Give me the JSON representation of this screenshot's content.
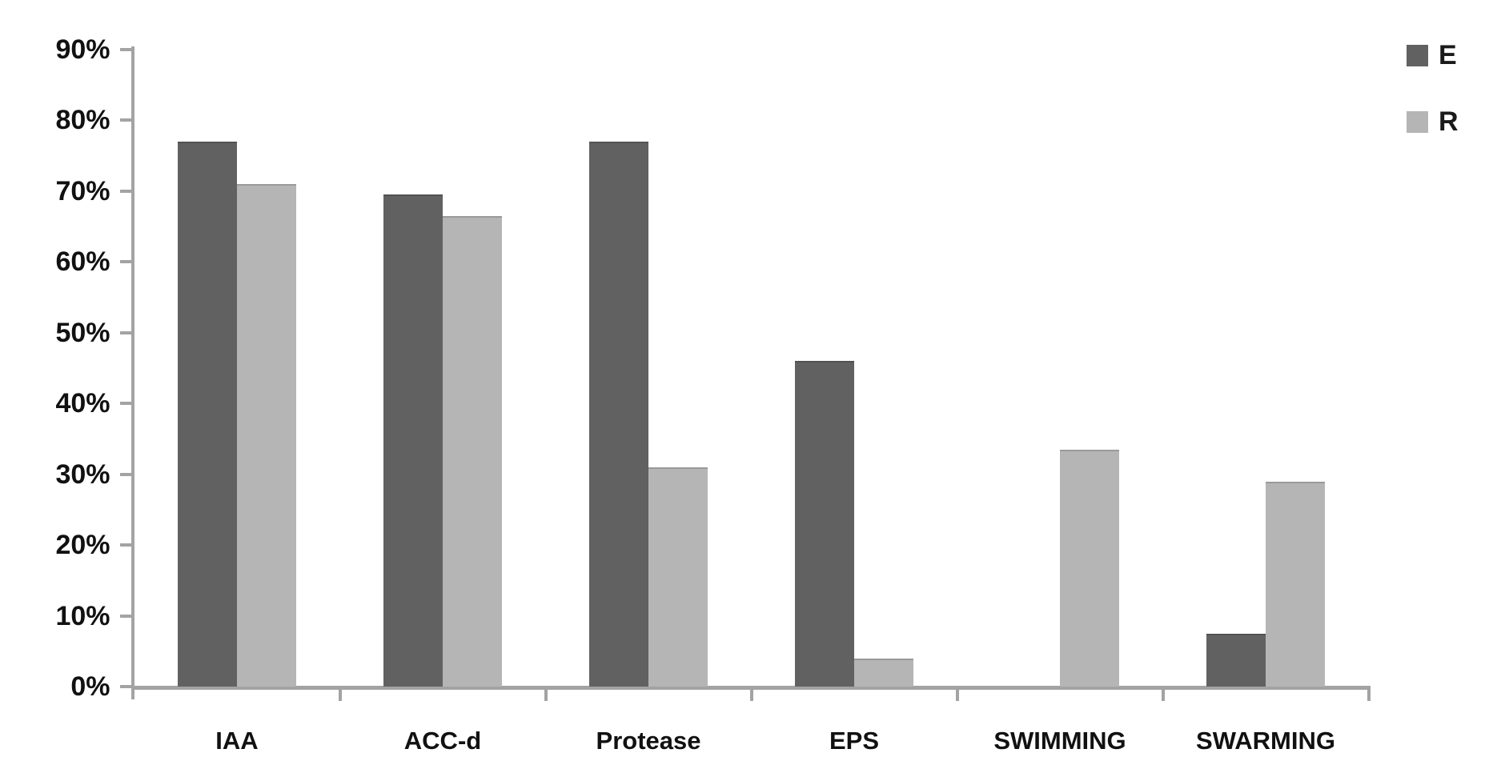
{
  "chart_data": {
    "type": "bar",
    "title": "",
    "xlabel": "",
    "ylabel": "",
    "categories": [
      "IAA",
      "ACC-d",
      "Protease",
      "EPS",
      "SWIMMING",
      "SWARMING"
    ],
    "series": [
      {
        "name": "E",
        "color": "#616161",
        "values": [
          77,
          69.5,
          77,
          46,
          0,
          7.5
        ]
      },
      {
        "name": "R",
        "color": "#b5b5b5",
        "values": [
          71,
          66.5,
          31,
          4,
          33.5,
          29
        ]
      }
    ],
    "y_ticks": [
      "0%",
      "10%",
      "20%",
      "30%",
      "40%",
      "50%",
      "60%",
      "70%",
      "80%",
      "90%"
    ],
    "ylim": [
      0,
      90
    ],
    "y_tick_step": 10,
    "grid": false,
    "legend_position": "top-right",
    "axis_color": "#a3a3a3",
    "text_color": "#111111"
  }
}
